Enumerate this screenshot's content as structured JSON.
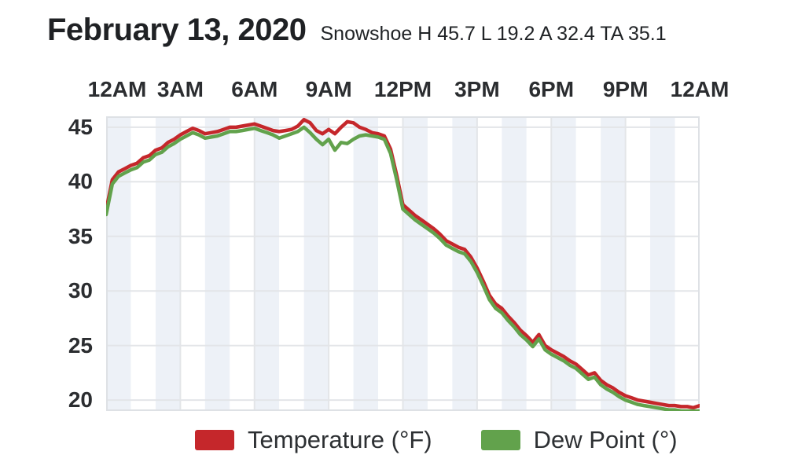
{
  "header": {
    "title": "February 13, 2020",
    "subtitle": "Snowshoe H 45.7 L 19.2 A 32.4 TA 35.1",
    "station": "Snowshoe",
    "stats": {
      "high": "45.7",
      "low": "19.2",
      "average": "32.4",
      "ta": "35.1"
    }
  },
  "legend": {
    "items": [
      {
        "label": "Temperature (°F)",
        "color": "#c5272b"
      },
      {
        "label": "Dew Point (°)",
        "color": "#62a24c"
      }
    ]
  },
  "chart_data": {
    "type": "line",
    "title": "February 13, 2020",
    "xlabel": "",
    "ylabel": "",
    "x_axis": {
      "tick_labels": [
        "12AM",
        "3AM",
        "6AM",
        "9AM",
        "12PM",
        "3PM",
        "6PM",
        "9PM",
        "12AM"
      ],
      "tick_hours": [
        0,
        3,
        6,
        9,
        12,
        15,
        18,
        21,
        24
      ]
    },
    "y_axis": {
      "ticks": [
        45,
        40,
        35,
        30,
        25,
        20
      ]
    },
    "x_range": [
      0,
      24
    ],
    "y_range": [
      19,
      46
    ],
    "grid": true,
    "legend_position": "bottom",
    "layout": {
      "band_even_fill": "#edf1f7",
      "band_odd_fill": "#ffffff",
      "band_hours": 1,
      "grid_color": "#e3e5e8",
      "border_color": "#dee1e5",
      "line_width": 4.5
    },
    "x_start_hour": 0,
    "x_step_hours": 0.25,
    "series": [
      {
        "name": "Temperature (°F)",
        "color": "#c5272b",
        "values": [
          37.4,
          40.2,
          40.9,
          41.2,
          41.5,
          41.7,
          42.2,
          42.4,
          42.9,
          43.1,
          43.6,
          43.9,
          44.3,
          44.6,
          44.9,
          44.7,
          44.4,
          44.5,
          44.6,
          44.8,
          45.0,
          45.0,
          45.1,
          45.2,
          45.3,
          45.1,
          44.9,
          44.7,
          44.6,
          44.7,
          44.8,
          45.1,
          45.7,
          45.4,
          44.7,
          44.4,
          44.8,
          44.4,
          45.0,
          45.5,
          45.4,
          45.0,
          44.8,
          44.5,
          44.4,
          44.2,
          43.0,
          40.6,
          37.9,
          37.4,
          36.9,
          36.5,
          36.1,
          35.7,
          35.2,
          34.6,
          34.3,
          34.0,
          33.8,
          33.1,
          32.1,
          30.9,
          29.6,
          28.8,
          28.4,
          27.7,
          27.1,
          26.4,
          25.9,
          25.3,
          26.0,
          25.0,
          24.6,
          24.3,
          24.0,
          23.6,
          23.3,
          22.8,
          22.3,
          22.5,
          21.8,
          21.4,
          21.1,
          20.7,
          20.4,
          20.2,
          20.0,
          19.9,
          19.8,
          19.7,
          19.6,
          19.5,
          19.5,
          19.4,
          19.4,
          19.3,
          19.5
        ]
      },
      {
        "name": "Dew Point (°)",
        "color": "#62a24c",
        "values": [
          37.0,
          39.8,
          40.5,
          40.8,
          41.1,
          41.3,
          41.8,
          42.0,
          42.5,
          42.7,
          43.2,
          43.5,
          43.9,
          44.2,
          44.5,
          44.3,
          44.0,
          44.1,
          44.2,
          44.4,
          44.6,
          44.6,
          44.7,
          44.8,
          44.9,
          44.7,
          44.5,
          44.3,
          44.0,
          44.2,
          44.4,
          44.6,
          45.0,
          44.5,
          43.9,
          43.4,
          43.9,
          42.9,
          43.6,
          43.5,
          43.9,
          44.2,
          44.3,
          44.2,
          44.1,
          43.9,
          42.6,
          40.2,
          37.5,
          37.0,
          36.5,
          36.1,
          35.7,
          35.3,
          34.8,
          34.2,
          33.9,
          33.6,
          33.4,
          32.7,
          31.7,
          30.5,
          29.2,
          28.4,
          28.0,
          27.3,
          26.7,
          26.0,
          25.5,
          24.9,
          25.6,
          24.6,
          24.2,
          23.9,
          23.6,
          23.2,
          22.9,
          22.4,
          21.9,
          22.1,
          21.4,
          21.0,
          20.7,
          20.3,
          20.0,
          19.8,
          19.6,
          19.5,
          19.4,
          19.3,
          19.2,
          19.1,
          19.1,
          19.0,
          19.0,
          19.0,
          19.0
        ]
      }
    ]
  }
}
